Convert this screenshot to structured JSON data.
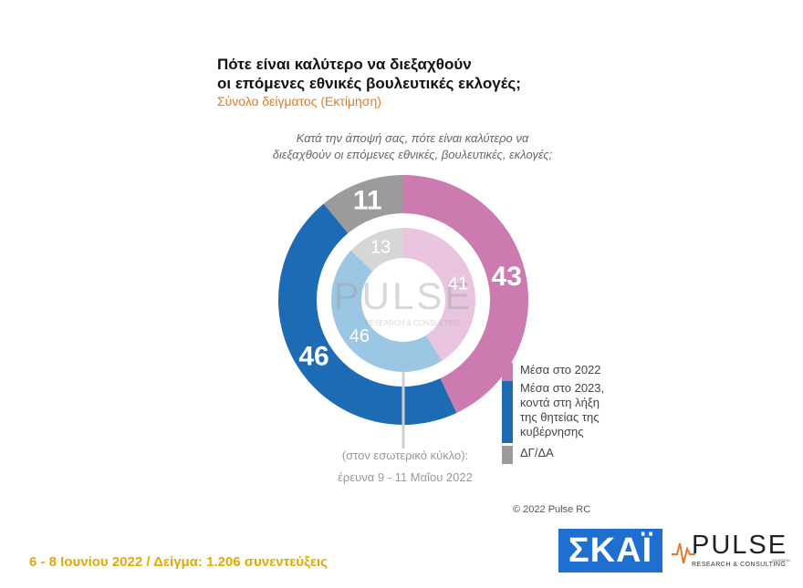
{
  "title_line1": "Πότε είναι καλύτερο να διεξαχθούν",
  "title_line2": "οι επόμενες εθνικές βουλευτικές εκλογές;",
  "subtitle": "Σύνολο δείγματος   (Εκτίμηση)",
  "question_line1": "Κατά την άποψή σας, πότε είναι καλύτερο να",
  "question_line2": "διεξαχθούν οι επόμενες εθνικές, βουλευτικές, εκλογές;",
  "chart_data": {
    "type": "pie",
    "style": "nested-donut",
    "categories": [
      "Μέσα στο 2022",
      "Μέσα στο 2023, κοντά στη λήξη της θητείας της κυβέρνησης",
      "ΔΓ/ΔΑ"
    ],
    "series": [
      {
        "name": "",
        "ring": "outer",
        "values": [
          43,
          46,
          11
        ]
      },
      {
        "name": "(στον εσωτερικό κύκλο): έρευνα 9 - 11 Μαΐου 2022",
        "ring": "inner",
        "values": [
          41,
          46,
          13
        ]
      }
    ],
    "colors": {
      "outer": [
        "#cc7bb0",
        "#1d6bb5",
        "#9b9b9b"
      ],
      "inner": [
        "#e9c4df",
        "#9cc7e4",
        "#d6d6d6"
      ]
    },
    "legend_position": "right"
  },
  "legend": [
    {
      "label_lines": [
        "Μέσα στο 2022"
      ],
      "color": "#cc7bb0"
    },
    {
      "label_lines": [
        "Μέσα στο 2023,",
        "κοντά στη λήξη",
        "της θητείας της",
        "κυβέρνησης"
      ],
      "color": "#1d6bb5"
    },
    {
      "label_lines": [
        "ΔΓ/ΔΑ"
      ],
      "color": "#9b9b9b"
    }
  ],
  "inner_note_line1": "(στον εσωτερικό κύκλο):",
  "inner_note_line2": "έρευνα 9 - 11 Μαΐου 2022",
  "watermark_text": "PULSE",
  "watermark_tagline": "RESEARCH & CONSULTING",
  "copyright": "© 2022 Pulse RC",
  "footer": "6 - 8  Ιουνίου  2022  /  Δείγμα:  1.206 συνεντεύξεις",
  "logo_skai": "ΣΚΑΪ",
  "logo_pulse": "PULSE",
  "logo_pulse_tagline": "RESEARCH & CONSULTING",
  "logo_pulse_small": "ΚΕΔΕΜΟΝ"
}
